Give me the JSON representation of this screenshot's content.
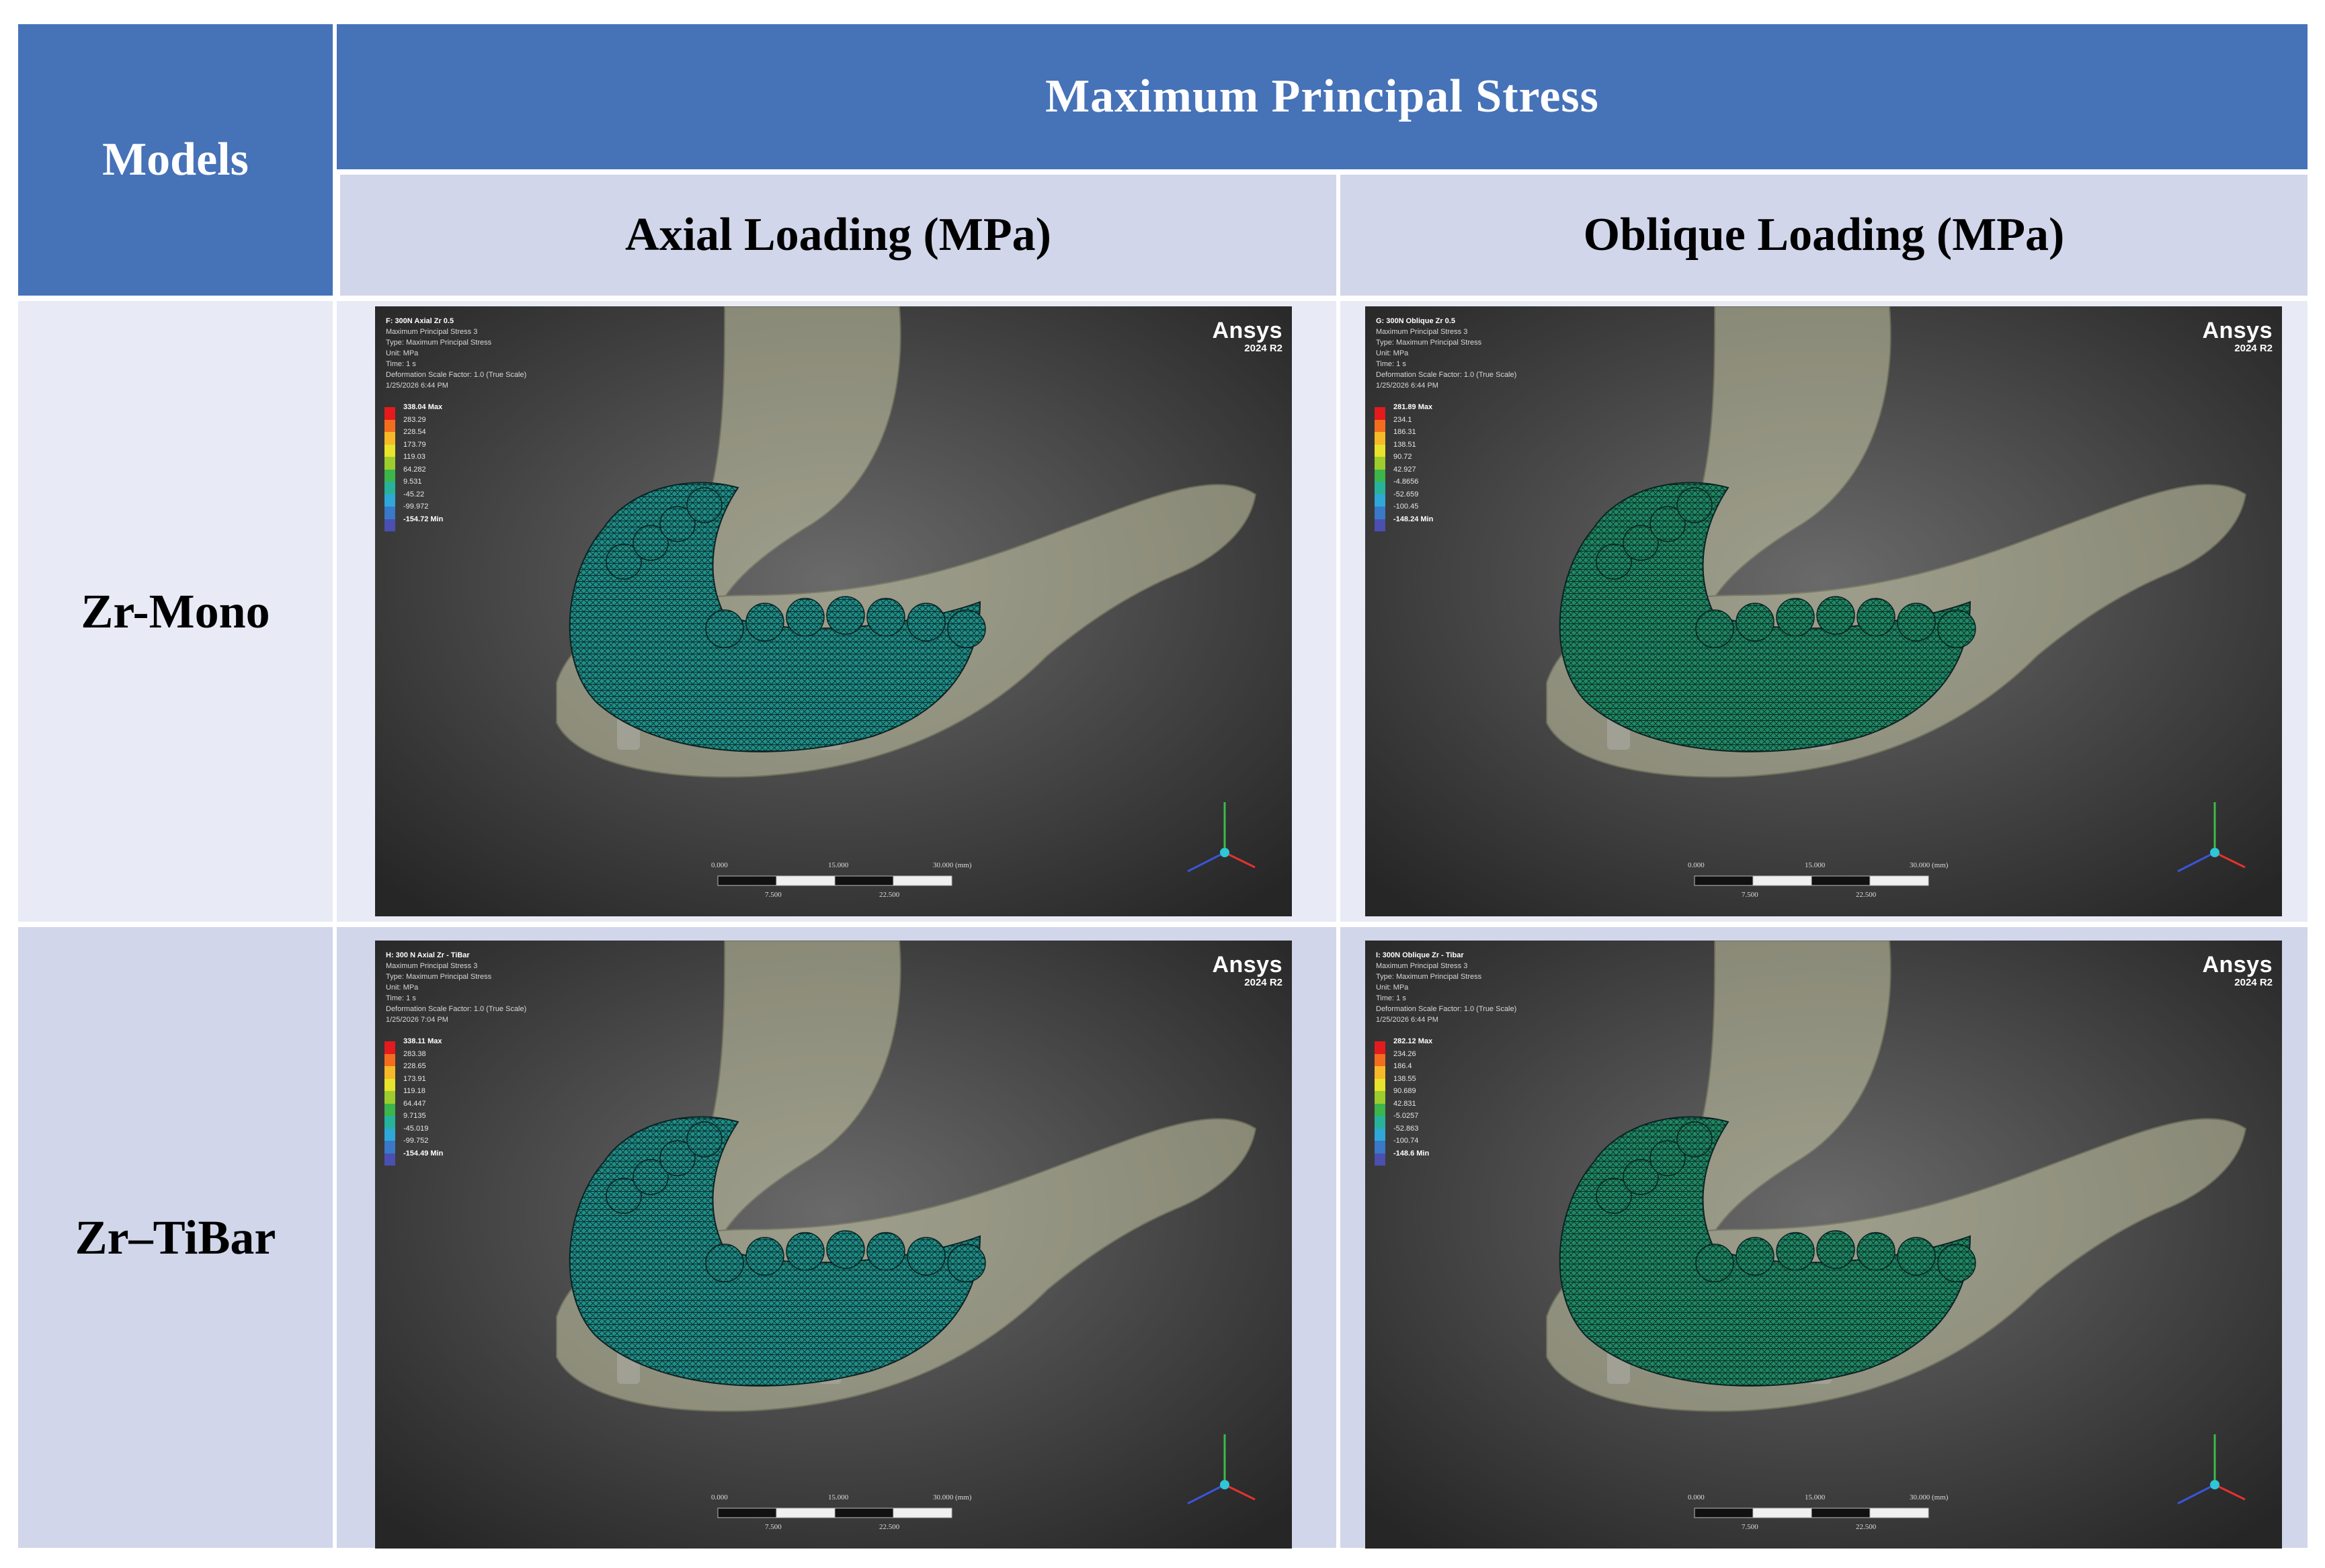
{
  "header": {
    "models_label": "Models",
    "main_title": "Maximum Principal Stress",
    "col_axial": "Axial Loading (MPa)",
    "col_oblique": "Oblique Loading (MPa)"
  },
  "rows": [
    {
      "label": "Zr-Mono"
    },
    {
      "label": "Zr–TiBar"
    }
  ],
  "colors": {
    "header_dark": "#4672b8",
    "header_light": "#d1d6ea",
    "row1_bg": "#e8ebf5",
    "row2_bg": "#d1d6ea",
    "legend": [
      "#e41a1c",
      "#f46d1f",
      "#f7b928",
      "#e8e32b",
      "#9ccc2d",
      "#3cb54a",
      "#27b39b",
      "#2fa8d8",
      "#3a78c8",
      "#4a4fb0"
    ]
  },
  "panels": [
    {
      "id": "p1",
      "lines": [
        "F: 300N Axial Zr 0.5",
        "Maximum Principal Stress 3",
        "Type: Maximum Principal Stress",
        "Unit: MPa",
        "Time: 1 s",
        "Deformation Scale Factor: 1.0 (True Scale)",
        "1/25/2026 6:44 PM"
      ],
      "legend": [
        "338.04 Max",
        "283.29",
        "228.54",
        "173.79",
        "119.03",
        "64.282",
        "9.531",
        "-45.22",
        "-99.972",
        "-154.72 Min"
      ],
      "brand": "Ansys",
      "version": "2024 R2",
      "scale": [
        "0.000",
        "15.000",
        "30.000 (mm)",
        "7.500",
        "22.500"
      ],
      "mesh_color": "#1f8f8a"
    },
    {
      "id": "p2",
      "lines": [
        "G: 300N Oblique Zr 0.5",
        "Maximum Principal Stress 3",
        "Type: Maximum Principal Stress",
        "Unit: MPa",
        "Time: 1 s",
        "Deformation Scale Factor: 1.0 (True Scale)",
        "1/25/2026 6:44 PM"
      ],
      "legend": [
        "281.89 Max",
        "234.1",
        "186.31",
        "138.51",
        "90.72",
        "42.927",
        "-4.8656",
        "-52.659",
        "-100.45",
        "-148.24 Min"
      ],
      "brand": "Ansys",
      "version": "2024 R2",
      "scale": [
        "0.000",
        "15.000",
        "30.000 (mm)",
        "7.500",
        "22.500"
      ],
      "mesh_color": "#1f8a62"
    },
    {
      "id": "p3",
      "lines": [
        "H: 300 N Axial Zr - TiBar",
        "Maximum Principal Stress 3",
        "Type: Maximum Principal Stress",
        "Unit: MPa",
        "Time: 1 s",
        "Deformation Scale Factor: 1.0 (True Scale)",
        "1/25/2026 7:04 PM"
      ],
      "legend": [
        "338.11 Max",
        "283.38",
        "228.65",
        "173.91",
        "119.18",
        "64.447",
        "9.7135",
        "-45.019",
        "-99.752",
        "-154.49 Min"
      ],
      "brand": "Ansys",
      "version": "2024 R2",
      "scale": [
        "0.000",
        "15.000",
        "30.000 (mm)",
        "7.500",
        "22.500"
      ],
      "mesh_color": "#1f8f8a"
    },
    {
      "id": "p4",
      "lines": [
        "I: 300N Oblique Zr - Tibar",
        "Maximum Principal Stress 3",
        "Type: Maximum Principal Stress",
        "Unit: MPa",
        "Time: 1 s",
        "Deformation Scale Factor: 1.0 (True Scale)",
        "1/25/2026 6:44 PM"
      ],
      "legend": [
        "282.12 Max",
        "234.26",
        "186.4",
        "138.55",
        "90.689",
        "42.831",
        "-5.0257",
        "-52.863",
        "-100.74",
        "-148.6 Min"
      ],
      "brand": "Ansys",
      "version": "2024 R2",
      "scale": [
        "0.000",
        "15.000",
        "30.000 (mm)",
        "7.500",
        "22.500"
      ],
      "mesh_color": "#1f8a62"
    }
  ]
}
